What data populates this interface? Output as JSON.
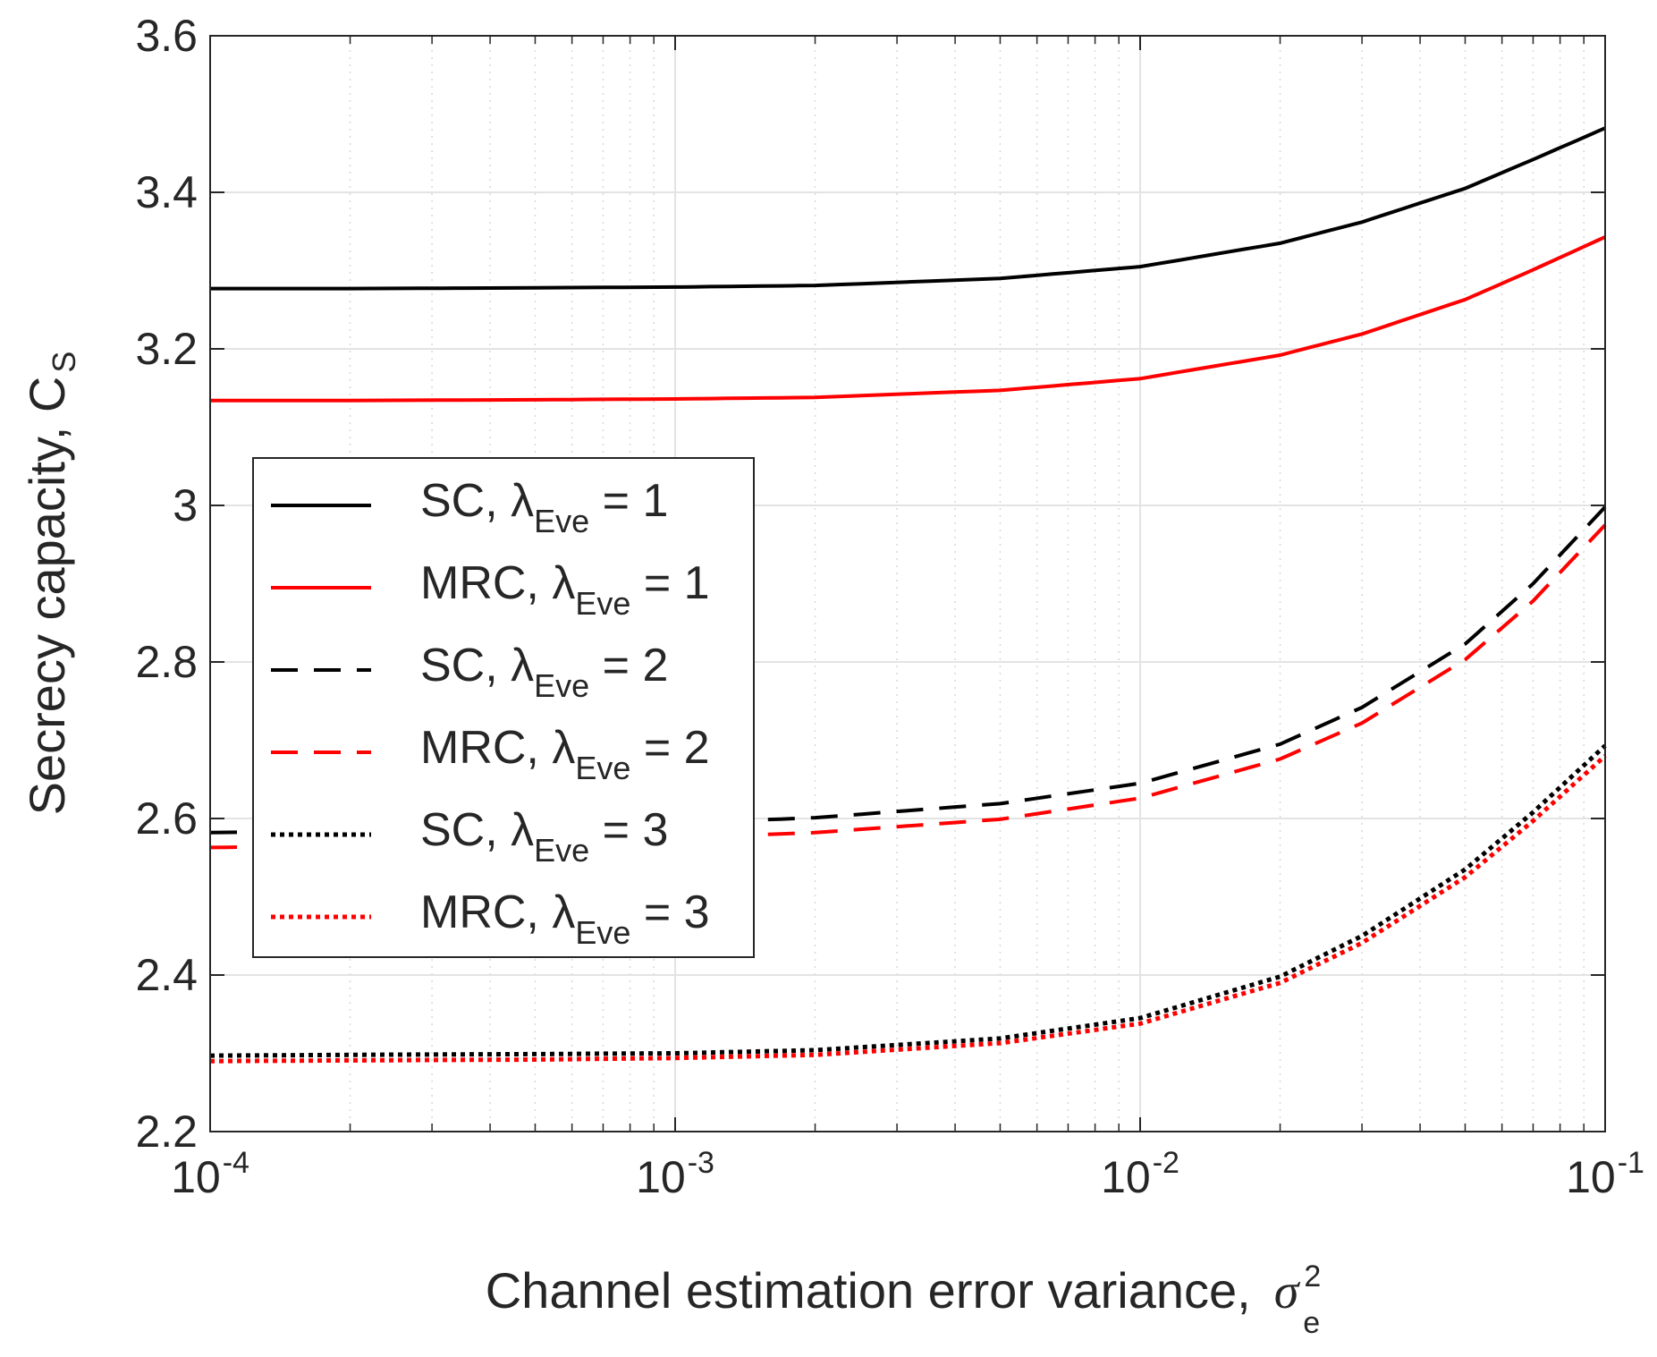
{
  "chart_data": {
    "type": "line",
    "x_scale": "log",
    "xlim": [
      0.0001,
      0.1
    ],
    "ylim": [
      2.2,
      3.6
    ],
    "grid": true,
    "minor_grid": true,
    "legend_position": "center-left",
    "xlabel": "Channel estimation error variance,",
    "xlabel_symbol": "σ",
    "xlabel_sup": "2",
    "xlabel_sub": "e",
    "ylabel": "Secrecy capacity, C",
    "ylabel_sub": "S",
    "y_ticks": [
      "2.2",
      "2.4",
      "2.6",
      "2.8",
      "3",
      "3.2",
      "3.4",
      "3.6"
    ],
    "x_ticks": [
      {
        "base": "10",
        "exp": "-4"
      },
      {
        "base": "10",
        "exp": "-3"
      },
      {
        "base": "10",
        "exp": "-2"
      },
      {
        "base": "10",
        "exp": "-1"
      }
    ],
    "x": [
      0.0001,
      0.0002,
      0.0005,
      0.001,
      0.002,
      0.005,
      0.01,
      0.02,
      0.03,
      0.05,
      0.07,
      0.1
    ],
    "series": [
      {
        "name": "SC, λEve = 1",
        "label_main": "SC, λ",
        "label_sub": "Eve",
        "label_tail": " = 1",
        "color": "#000000",
        "style": "solid",
        "values": [
          3.277,
          3.277,
          3.278,
          3.279,
          3.281,
          3.29,
          3.305,
          3.335,
          3.362,
          3.405,
          3.442,
          3.482
        ]
      },
      {
        "name": "MRC, λEve = 1",
        "label_main": "MRC, λ",
        "label_sub": "Eve",
        "label_tail": " = 1",
        "color": "#ff0000",
        "style": "solid",
        "values": [
          3.134,
          3.134,
          3.135,
          3.136,
          3.138,
          3.147,
          3.162,
          3.192,
          3.219,
          3.263,
          3.301,
          3.343
        ]
      },
      {
        "name": "SC, λEve = 2",
        "label_main": "SC, λ",
        "label_sub": "Eve",
        "label_tail": " = 2",
        "color": "#000000",
        "style": "dashed",
        "values": [
          2.582,
          2.584,
          2.589,
          2.594,
          2.601,
          2.619,
          2.645,
          2.695,
          2.742,
          2.823,
          2.9,
          2.998
        ]
      },
      {
        "name": "MRC, λEve = 2",
        "label_main": "MRC, λ",
        "label_sub": "Eve",
        "label_tail": " = 2",
        "color": "#ff0000",
        "style": "dashed",
        "values": [
          2.563,
          2.565,
          2.57,
          2.575,
          2.582,
          2.599,
          2.626,
          2.676,
          2.722,
          2.803,
          2.878,
          2.975
        ]
      },
      {
        "name": "SC, λEve = 3",
        "label_main": "SC, λ",
        "label_sub": "Eve",
        "label_tail": " = 3",
        "color": "#000000",
        "style": "dotted",
        "values": [
          2.297,
          2.298,
          2.299,
          2.3,
          2.304,
          2.319,
          2.345,
          2.398,
          2.45,
          2.535,
          2.608,
          2.693
        ]
      },
      {
        "name": "MRC, λEve = 3",
        "label_main": "MRC, λ",
        "label_sub": "Eve",
        "label_tail": " = 3",
        "color": "#ff0000",
        "style": "dotted",
        "values": [
          2.29,
          2.291,
          2.292,
          2.294,
          2.298,
          2.313,
          2.338,
          2.39,
          2.441,
          2.525,
          2.597,
          2.68
        ]
      }
    ]
  }
}
